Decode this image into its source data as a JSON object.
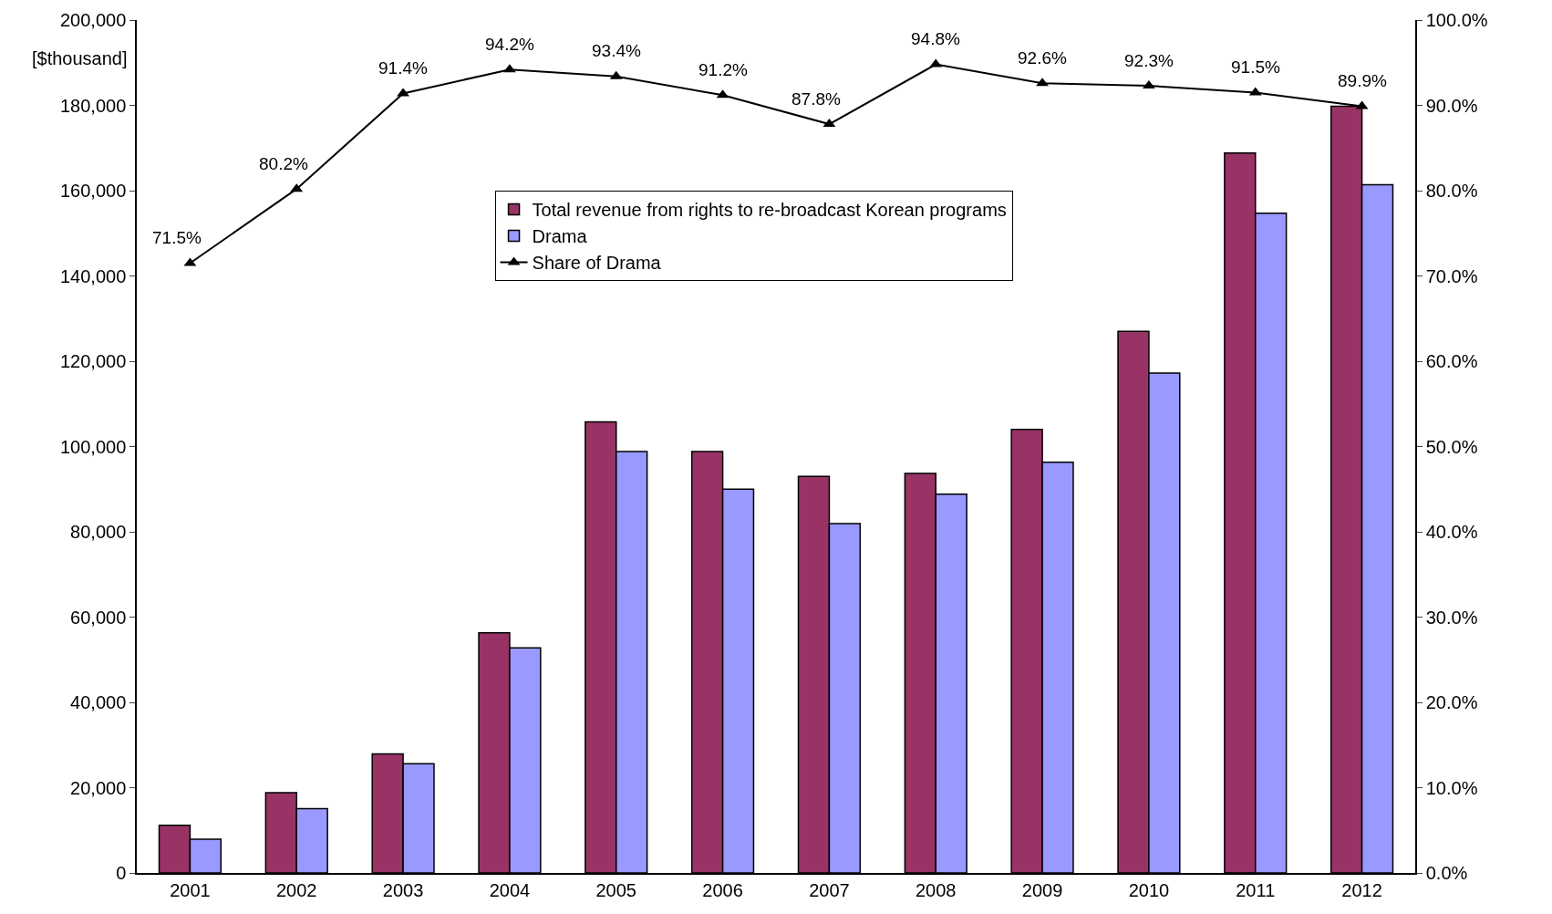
{
  "chart_data": {
    "type": "bar",
    "ylabel": "[$thousand]",
    "categories": [
      "2001",
      "2002",
      "2003",
      "2004",
      "2005",
      "2006",
      "2007",
      "2008",
      "2009",
      "2010",
      "2011",
      "2012"
    ],
    "series": [
      {
        "name": "Total revenue from rights to re-broadcast Korean programs",
        "color": "#993366",
        "values": [
          11200,
          18800,
          27900,
          56300,
          105800,
          98800,
          93000,
          93700,
          104000,
          127000,
          168800,
          179800
        ]
      },
      {
        "name": "Drama",
        "color": "#9999ff",
        "values": [
          7900,
          15100,
          25600,
          52800,
          98800,
          90000,
          81900,
          88800,
          96300,
          117200,
          154700,
          161400
        ]
      },
      {
        "name": "Share of Drama",
        "type": "line",
        "axis": "y2",
        "color": "#000000",
        "marker": "triangle",
        "values": [
          71.5,
          80.2,
          91.4,
          94.2,
          93.4,
          91.2,
          87.8,
          94.8,
          92.6,
          92.3,
          91.5,
          89.9
        ],
        "value_labels": [
          "71.5%",
          "80.2%",
          "91.4%",
          "94.2%",
          "93.4%",
          "91.2%",
          "87.8%",
          "94.8%",
          "92.6%",
          "92.3%",
          "91.5%",
          "89.9%"
        ]
      }
    ],
    "ylim": [
      0,
      200000
    ],
    "yticks": [
      {
        "value": 0,
        "label": "0"
      },
      {
        "value": 20000,
        "label": "20,000"
      },
      {
        "value": 40000,
        "label": "40,000"
      },
      {
        "value": 60000,
        "label": "60,000"
      },
      {
        "value": 80000,
        "label": "80,000"
      },
      {
        "value": 100000,
        "label": "100,000"
      },
      {
        "value": 120000,
        "label": "120,000"
      },
      {
        "value": 140000,
        "label": "140,000"
      },
      {
        "value": 160000,
        "label": "160,000"
      },
      {
        "value": 180000,
        "label": "180,000"
      },
      {
        "value": 200000,
        "label": "200,000"
      }
    ],
    "y2lim": [
      0,
      100
    ],
    "y2ticks": [
      {
        "value": 0,
        "label": "0.0%"
      },
      {
        "value": 10,
        "label": "10.0%"
      },
      {
        "value": 20,
        "label": "20.0%"
      },
      {
        "value": 30,
        "label": "30.0%"
      },
      {
        "value": 40,
        "label": "40.0%"
      },
      {
        "value": 50,
        "label": "50.0%"
      },
      {
        "value": 60,
        "label": "60.0%"
      },
      {
        "value": 70,
        "label": "70.0%"
      },
      {
        "value": 80,
        "label": "80.0%"
      },
      {
        "value": 90,
        "label": "90.0%"
      },
      {
        "value": 100,
        "label": "100.0%"
      }
    ],
    "grid": false,
    "legend": "top"
  }
}
